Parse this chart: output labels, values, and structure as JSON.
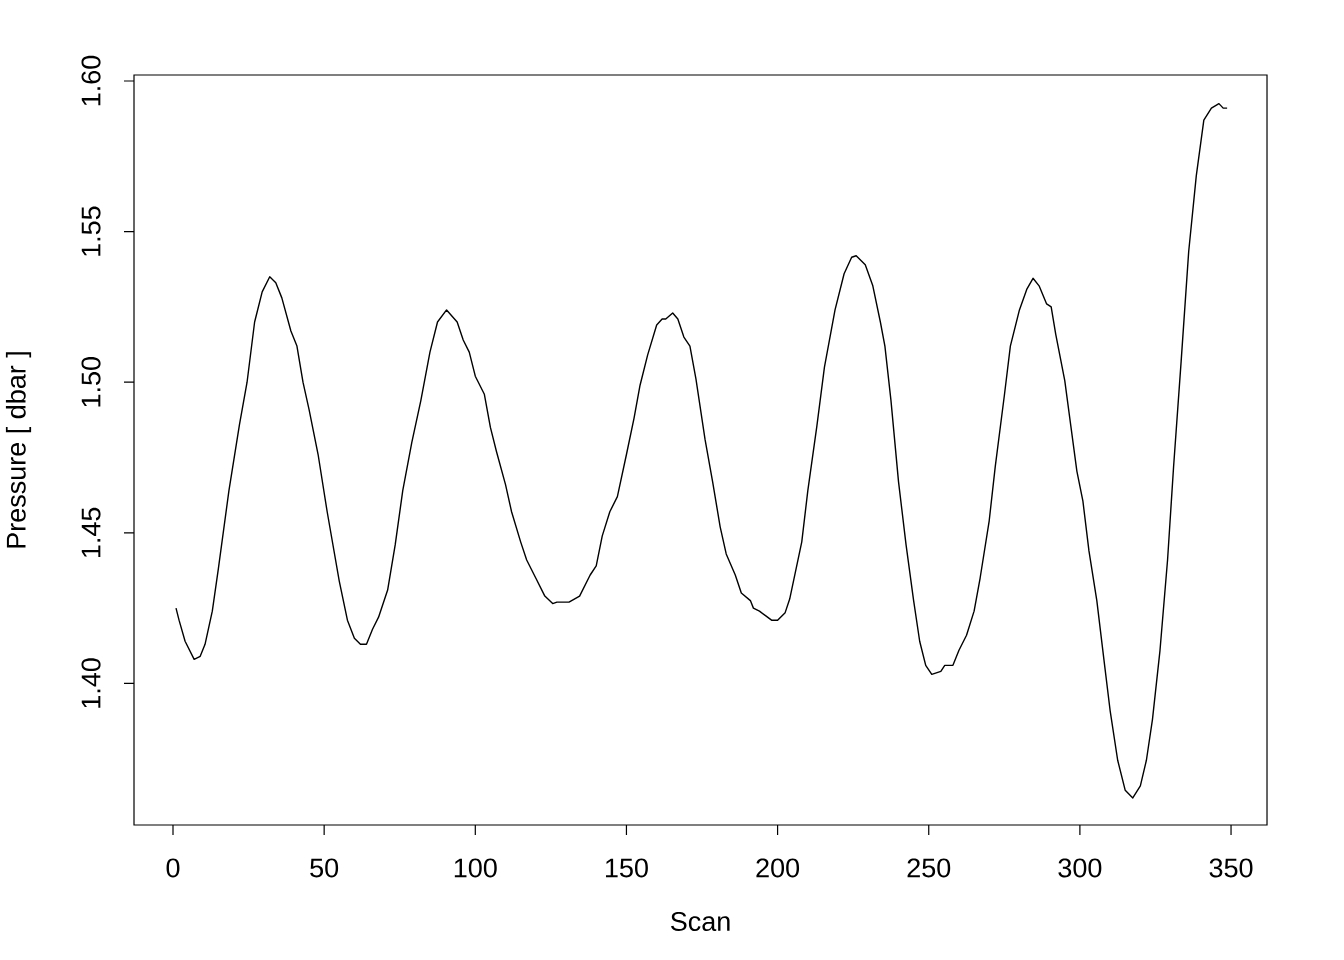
{
  "chart_data": {
    "type": "line",
    "xlabel": "Scan",
    "ylabel": "Pressure [ dbar ]",
    "xlim": [
      -12.9,
      361.9
    ],
    "ylim": [
      1.353,
      1.602
    ],
    "xticks": [
      0,
      50,
      100,
      150,
      200,
      250,
      300,
      350
    ],
    "yticks": [
      {
        "value": 1.4,
        "label": "1.40"
      },
      {
        "value": 1.45,
        "label": "1.45"
      },
      {
        "value": 1.5,
        "label": "1.50"
      },
      {
        "value": 1.55,
        "label": "1.55"
      },
      {
        "value": 1.6,
        "label": "1.60"
      }
    ],
    "marker": "none",
    "line_style": "solid",
    "series": [
      {
        "color": "#000000",
        "x": [
          1,
          2,
          4,
          7,
          9,
          10.6,
          13,
          15,
          18.5,
          22,
          24.5,
          27,
          29.5,
          32,
          34,
          36,
          39,
          41,
          43,
          45,
          48,
          51,
          55,
          57.7,
          60,
          62,
          64,
          66,
          68,
          71,
          73.5,
          76,
          79,
          82,
          85,
          87.5,
          90.5,
          94,
          96,
          98,
          100,
          103,
          105,
          107,
          110,
          112,
          115,
          117,
          120,
          123,
          125.6,
          127,
          131,
          134.5,
          138,
          140,
          142,
          144.5,
          147,
          150,
          152.5,
          154.5,
          157,
          160,
          161.8,
          163,
          165.3,
          167,
          169,
          171,
          173,
          176,
          178.5,
          181,
          183,
          186,
          188,
          191,
          192,
          194,
          196,
          198,
          200,
          202.5,
          204,
          206,
          208,
          210,
          213,
          215.5,
          219,
          222,
          224.5,
          226,
          229,
          231.5,
          234,
          235.5,
          237.5,
          240,
          242.5,
          245,
          247,
          249,
          251,
          254,
          255.3,
          258,
          260,
          262.5,
          265,
          267,
          270,
          272,
          275,
          277,
          280,
          282.5,
          284.5,
          286.5,
          289,
          290.5,
          292,
          295,
          297,
          299,
          301,
          303,
          305.6,
          308,
          310,
          312.5,
          315,
          317.5,
          320,
          322,
          324,
          326.5,
          329,
          331,
          333.5,
          336,
          338.5,
          341,
          343.5,
          346,
          347.4,
          348.7
        ],
        "values": [
          1.425,
          1.421,
          1.414,
          1.408,
          1.409,
          1.413,
          1.424,
          1.438,
          1.464,
          1.486,
          1.5,
          1.52,
          1.53,
          1.535,
          1.533,
          1.528,
          1.517,
          1.512,
          1.5,
          1.491,
          1.476,
          1.457,
          1.434,
          1.421,
          1.415,
          1.413,
          1.413,
          1.418,
          1.422,
          1.431,
          1.446,
          1.464,
          1.48,
          1.494,
          1.51,
          1.52,
          1.524,
          1.52,
          1.514,
          1.51,
          1.502,
          1.496,
          1.485,
          1.477,
          1.466,
          1.457,
          1.447,
          1.441,
          1.435,
          1.429,
          1.4265,
          1.427,
          1.427,
          1.429,
          1.436,
          1.439,
          1.449,
          1.457,
          1.462,
          1.476,
          1.488,
          1.499,
          1.509,
          1.519,
          1.521,
          1.521,
          1.523,
          1.521,
          1.515,
          1.512,
          1.501,
          1.481,
          1.467,
          1.452,
          1.443,
          1.436,
          1.43,
          1.4275,
          1.425,
          1.424,
          1.4225,
          1.421,
          1.421,
          1.4235,
          1.428,
          1.4375,
          1.447,
          1.464,
          1.4855,
          1.505,
          1.524,
          1.536,
          1.5415,
          1.542,
          1.539,
          1.532,
          1.52,
          1.512,
          1.494,
          1.467,
          1.446,
          1.4275,
          1.414,
          1.406,
          1.403,
          1.404,
          1.406,
          1.406,
          1.411,
          1.416,
          1.424,
          1.435,
          1.454,
          1.472,
          1.4955,
          1.512,
          1.524,
          1.531,
          1.5345,
          1.532,
          1.526,
          1.525,
          1.516,
          1.5005,
          1.4855,
          1.4705,
          1.4605,
          1.444,
          1.4275,
          1.4075,
          1.391,
          1.3745,
          1.3645,
          1.362,
          1.366,
          1.3745,
          1.388,
          1.411,
          1.441,
          1.472,
          1.507,
          1.5435,
          1.5685,
          1.587,
          1.591,
          1.5925,
          1.591,
          1.591
        ]
      }
    ]
  }
}
